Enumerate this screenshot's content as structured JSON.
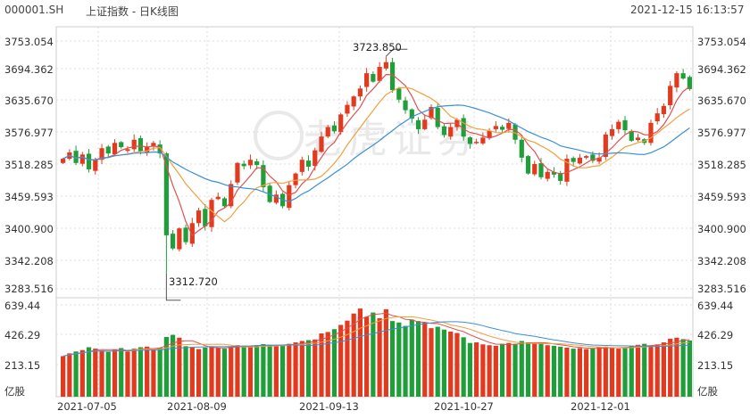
{
  "header": {
    "code": "000001.SH",
    "name": "上证指数 - 日K线图",
    "datetime": "2021-12-15 16:13:57"
  },
  "watermark": "老虎证券",
  "colors": {
    "up": "#e23a1e",
    "down": "#1f9e3a",
    "ma5": "#e05050",
    "ma10": "#f0a040",
    "ma20": "#3a8fd8",
    "grid": "#dddddd"
  },
  "price_axis": {
    "ticks": [
      "3753.054",
      "3694.362",
      "3635.670",
      "3576.977",
      "3518.285",
      "3459.593",
      "3400.900",
      "3342.208",
      "3283.516"
    ]
  },
  "volume_axis": {
    "ticks": [
      "639.44",
      "426.29",
      "213.15"
    ],
    "unit": "亿股"
  },
  "x_axis": {
    "ticks": [
      "2021-07-05",
      "2021-08-09",
      "2021-09-13",
      "2021-10-27",
      "2021-12-01"
    ]
  },
  "chart_data": {
    "type": "candlestick",
    "title": "上证指数 - 日K线图",
    "price_range": [
      3283.516,
      3753.054
    ],
    "volume_range": [
      0,
      639.44
    ],
    "annotations": [
      {
        "label": "3723.850",
        "kind": "high",
        "index": 50,
        "value": 3723.85
      },
      {
        "label": "3312.720",
        "kind": "low",
        "index": 16,
        "value": 3312.72
      }
    ],
    "series": [
      {
        "name": "MA5",
        "values": []
      },
      {
        "name": "MA10",
        "values": []
      },
      {
        "name": "MA20",
        "values": []
      }
    ],
    "closes": [
      3530,
      3542,
      3522,
      3538,
      3510,
      3528,
      3550,
      3540,
      3560,
      3552,
      3548,
      3566,
      3544,
      3552,
      3560,
      3540,
      3385,
      3360,
      3398,
      3372,
      3408,
      3432,
      3402,
      3452,
      3458,
      3440,
      3482,
      3522,
      3516,
      3528,
      3518,
      3476,
      3448,
      3462,
      3440,
      3480,
      3502,
      3528,
      3515,
      3546,
      3572,
      3590,
      3582,
      3614,
      3632,
      3648,
      3663,
      3692,
      3676,
      3704,
      3713,
      3660,
      3642,
      3622,
      3606,
      3586,
      3604,
      3628,
      3590,
      3575,
      3590,
      3604,
      3572,
      3558,
      3562,
      3570,
      3583,
      3592,
      3585,
      3598,
      3566,
      3532,
      3502,
      3520,
      3495,
      3505,
      3500,
      3488,
      3530,
      3524,
      3532,
      3535,
      3526,
      3532,
      3576,
      3586,
      3600,
      3584,
      3564,
      3570,
      3560,
      3598,
      3616,
      3630,
      3668,
      3692,
      3682,
      3662
    ],
    "volumes": [
      285,
      305,
      318,
      328,
      348,
      338,
      325,
      315,
      332,
      342,
      318,
      338,
      348,
      352,
      332,
      345,
      420,
      435,
      415,
      355,
      345,
      335,
      345,
      355,
      342,
      338,
      355,
      362,
      358,
      355,
      362,
      370,
      365,
      358,
      362,
      372,
      382,
      392,
      398,
      402,
      445,
      455,
      475,
      505,
      535,
      585,
      620,
      562,
      592,
      552,
      615,
      532,
      522,
      498,
      542,
      532,
      522,
      482,
      492,
      472,
      458,
      448,
      418,
      378,
      382,
      368,
      362,
      358,
      372,
      378,
      372,
      392,
      382,
      375,
      378,
      362,
      358,
      352,
      345,
      338,
      342,
      335,
      342,
      348,
      352,
      345,
      338,
      348,
      358,
      365,
      372,
      355,
      368,
      382,
      408,
      415,
      405,
      395
    ]
  }
}
